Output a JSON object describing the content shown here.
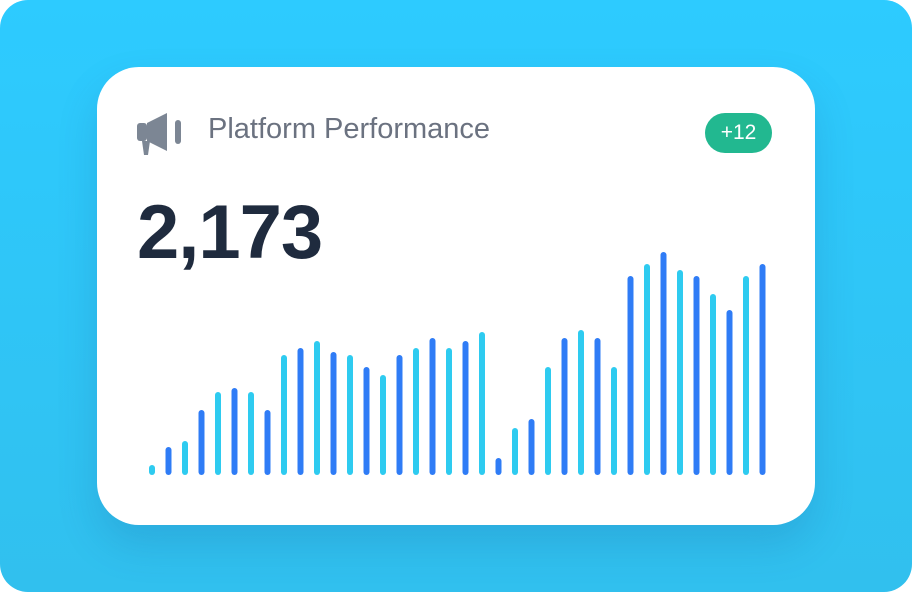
{
  "widget": {
    "title": "Platform Performance",
    "total": "2,173",
    "badge": "+12"
  },
  "chart_data": {
    "type": "bar",
    "values": [
      10,
      28,
      34,
      65,
      83,
      87,
      83,
      65,
      120,
      127,
      134,
      123,
      120,
      108,
      100,
      120,
      127,
      137,
      127,
      134,
      143,
      17,
      47,
      56,
      108,
      137,
      145,
      137,
      108,
      199,
      211,
      223,
      205,
      199,
      181,
      165,
      199,
      211
    ],
    "colors": [
      "#2ecbf0",
      "#2f7cf6"
    ]
  }
}
